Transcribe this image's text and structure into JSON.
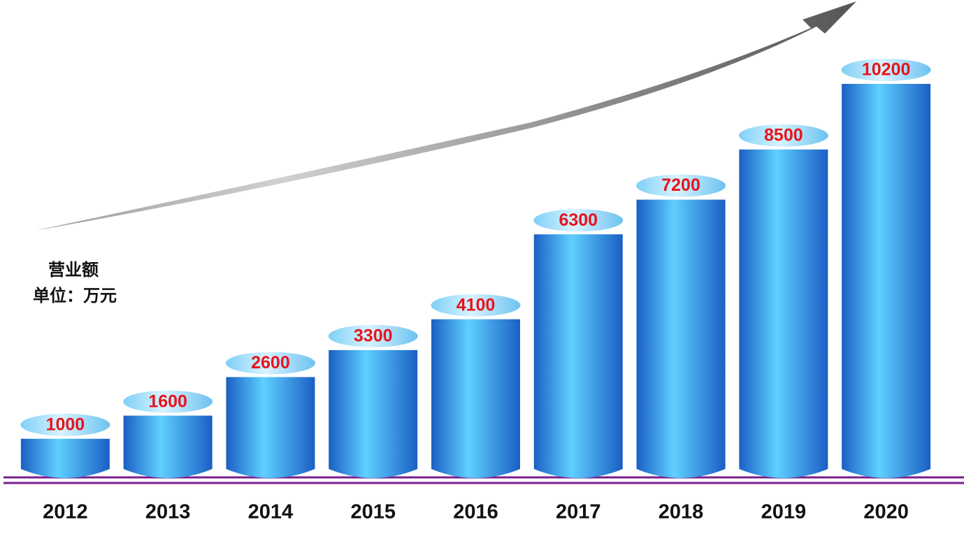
{
  "chart_data": {
    "type": "bar",
    "annotations": [
      "营业额",
      "单位：万元"
    ],
    "categories": [
      "2012",
      "2013",
      "2014",
      "2015",
      "2016",
      "2017",
      "2018",
      "2019",
      "2020"
    ],
    "values": [
      1000,
      1600,
      2600,
      3300,
      4100,
      6300,
      7200,
      8500,
      10200
    ],
    "color": "#1a5fc4"
  }
}
